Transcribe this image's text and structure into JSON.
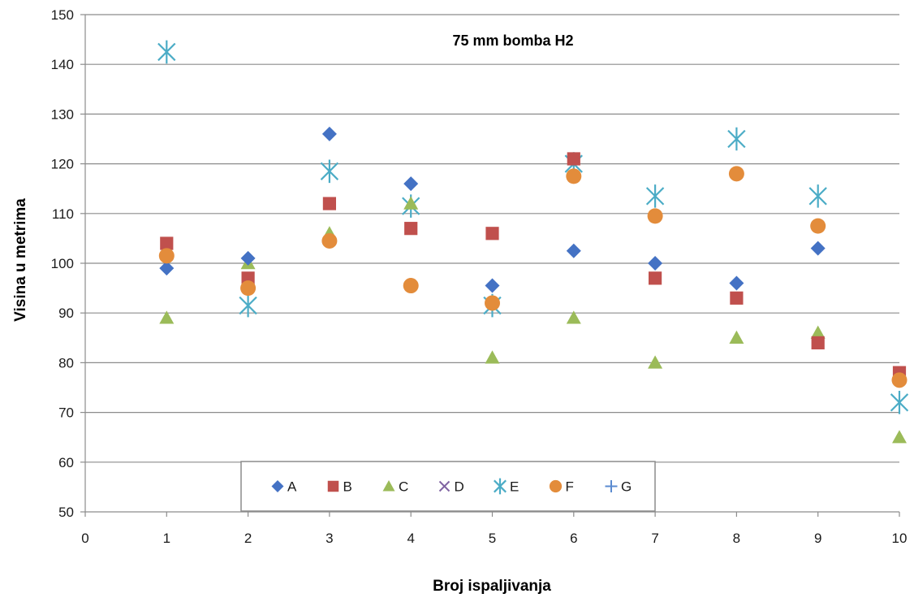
{
  "chart_data": {
    "type": "scatter",
    "title": "75 mm bomba H2",
    "xlabel": "Broj ispaljivanja",
    "ylabel": "Visina u metrima",
    "xlim": [
      0,
      10
    ],
    "ylim": [
      50,
      150
    ],
    "x_ticks": [
      "0",
      "1",
      "2",
      "3",
      "4",
      "5",
      "6",
      "7",
      "8",
      "9",
      "10"
    ],
    "y_ticks": [
      "50",
      "60",
      "70",
      "80",
      "90",
      "100",
      "110",
      "120",
      "130",
      "140",
      "150"
    ],
    "grid": "horizontal",
    "legend_position": "bottom-inside",
    "series": [
      {
        "name": "A",
        "marker": "diamond",
        "color": "#4472C4",
        "x": [
          1,
          2,
          3,
          4,
          5,
          6,
          7,
          8,
          9
        ],
        "y": [
          99,
          101,
          126,
          116,
          95.5,
          102.5,
          100,
          96,
          103
        ]
      },
      {
        "name": "B",
        "marker": "square",
        "color": "#C0504D",
        "x": [
          1,
          2,
          3,
          4,
          5,
          6,
          7,
          8,
          9,
          10
        ],
        "y": [
          104,
          97,
          112,
          107,
          106,
          121,
          97,
          93,
          84,
          78
        ]
      },
      {
        "name": "C",
        "marker": "triangle",
        "color": "#9BBB59",
        "x": [
          1,
          2,
          3,
          4,
          5,
          6,
          7,
          8,
          9,
          10
        ],
        "y": [
          89,
          100,
          106,
          112,
          81,
          89,
          80,
          85,
          86,
          65
        ]
      },
      {
        "name": "D",
        "marker": "x",
        "color": "#8064A2",
        "x": [],
        "y": []
      },
      {
        "name": "E",
        "marker": "star",
        "color": "#4BACC6",
        "x": [
          1,
          2,
          3,
          4,
          5,
          6,
          7,
          8,
          9,
          10
        ],
        "y": [
          142.5,
          91.5,
          118.5,
          111.5,
          91.5,
          120,
          113.5,
          125,
          113.5,
          72
        ]
      },
      {
        "name": "F",
        "marker": "circle",
        "color": "#E38C3B",
        "x": [
          1,
          2,
          3,
          4,
          5,
          6,
          7,
          8,
          9,
          10
        ],
        "y": [
          101.5,
          95,
          104.5,
          95.5,
          92,
          117.5,
          109.5,
          118,
          107.5,
          76.5
        ]
      },
      {
        "name": "G",
        "marker": "plus",
        "color": "#5B8BD0",
        "x": [],
        "y": []
      }
    ]
  }
}
